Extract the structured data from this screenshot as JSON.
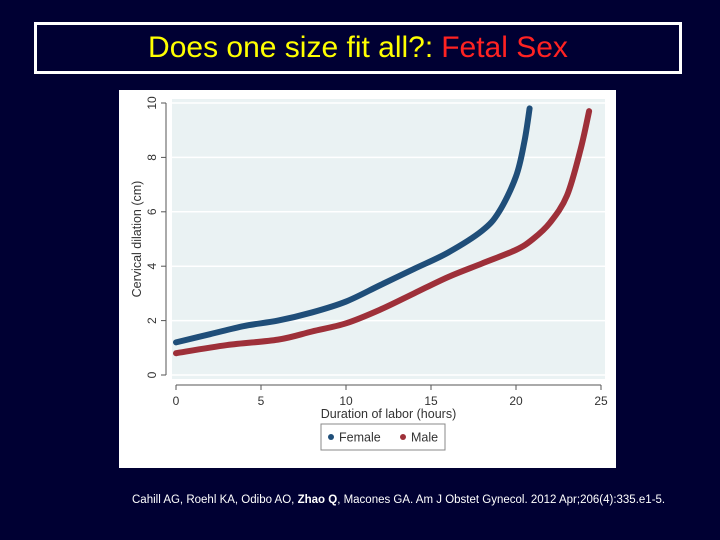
{
  "slide": {
    "title_main": "Does one size fit all?:",
    "title_accent": "Fetal Sex",
    "colors": {
      "background": "#000033",
      "title": "#ffff00",
      "accent": "#ff2222"
    }
  },
  "citation": {
    "before": "Cahill AG, Roehl KA, Odibo AO, ",
    "highlight": "Zhao Q",
    "after": ", Macones GA. Am J Obstet Gynecol. 2012 Apr;206(4):335.e1-5."
  },
  "chart_data": {
    "type": "line",
    "xlabel": "Duration of labor (hours)",
    "ylabel": "Cervical dilation (cm)",
    "xlim": [
      0,
      25
    ],
    "ylim": [
      0,
      10
    ],
    "xticks": [
      0,
      5,
      10,
      15,
      20,
      25
    ],
    "yticks": [
      0,
      2,
      4,
      6,
      8,
      10
    ],
    "legend_position": "bottom",
    "grid": true,
    "series": [
      {
        "name": "Female",
        "color": "#1f4e79",
        "points": [
          [
            0,
            1.2
          ],
          [
            2,
            1.5
          ],
          [
            4,
            1.8
          ],
          [
            6,
            2.0
          ],
          [
            8,
            2.3
          ],
          [
            10,
            2.7
          ],
          [
            12,
            3.3
          ],
          [
            14,
            3.9
          ],
          [
            16,
            4.5
          ],
          [
            18,
            5.3
          ],
          [
            19,
            6.0
          ],
          [
            20,
            7.3
          ],
          [
            20.5,
            8.6
          ],
          [
            20.8,
            9.8
          ]
        ]
      },
      {
        "name": "Male",
        "color": "#9e3039",
        "points": [
          [
            0,
            0.8
          ],
          [
            3,
            1.1
          ],
          [
            6,
            1.3
          ],
          [
            8,
            1.6
          ],
          [
            10,
            1.9
          ],
          [
            12,
            2.4
          ],
          [
            14,
            3.0
          ],
          [
            16,
            3.6
          ],
          [
            18,
            4.1
          ],
          [
            20,
            4.6
          ],
          [
            21,
            5.0
          ],
          [
            22,
            5.6
          ],
          [
            23,
            6.6
          ],
          [
            23.8,
            8.3
          ],
          [
            24.3,
            9.7
          ]
        ]
      }
    ]
  }
}
